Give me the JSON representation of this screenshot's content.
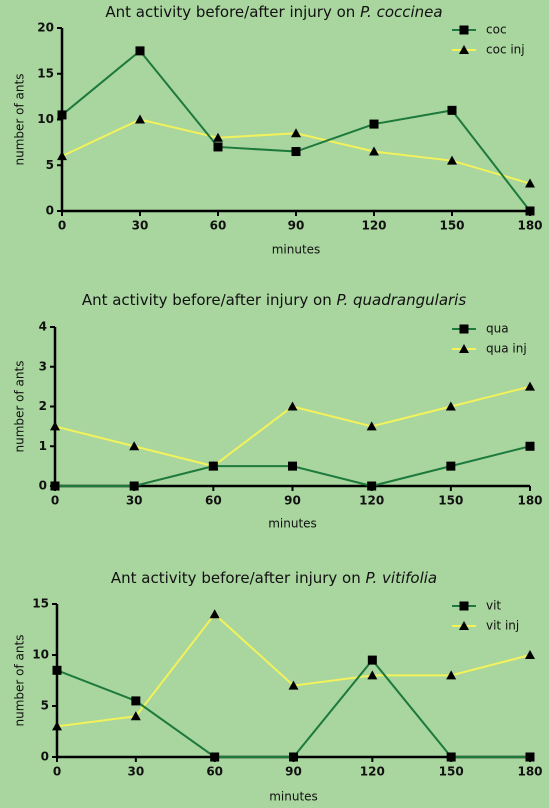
{
  "chart_data": [
    {
      "type": "line",
      "title": "Ant activity before/after injury on",
      "title_italic": "P. coccinea",
      "xlabel": "minutes",
      "ylabel": "number of ants",
      "x": [
        0,
        30,
        60,
        90,
        120,
        150,
        180
      ],
      "xlim": [
        0,
        180
      ],
      "xticks": [
        0,
        30,
        60,
        90,
        120,
        150,
        180
      ],
      "ylim": [
        0,
        20
      ],
      "yticks": [
        0,
        5,
        10,
        15,
        20
      ],
      "legend": "upper right",
      "series": [
        {
          "name": "coc",
          "color": "#1d7a3c",
          "marker": "square",
          "values": [
            10.5,
            17.5,
            7,
            6.5,
            9.5,
            11,
            0
          ]
        },
        {
          "name": "coc inj",
          "color": "#f2f25a",
          "marker": "triangle",
          "values": [
            6,
            10,
            8,
            8.5,
            6.5,
            5.5,
            3
          ]
        }
      ]
    },
    {
      "type": "line",
      "title": "Ant activity before/after injury on",
      "title_italic": "P. quadrangularis",
      "xlabel": "minutes",
      "ylabel": "number of ants",
      "x": [
        0,
        30,
        60,
        90,
        120,
        150,
        180
      ],
      "xlim": [
        0,
        180
      ],
      "xticks": [
        0,
        30,
        60,
        90,
        120,
        150,
        180
      ],
      "ylim": [
        0,
        4
      ],
      "yticks": [
        0,
        1,
        2,
        3,
        4
      ],
      "legend": "upper right",
      "series": [
        {
          "name": "qua",
          "color": "#1d7a3c",
          "marker": "square",
          "values": [
            0,
            0,
            0.5,
            0.5,
            0,
            0.5,
            1
          ]
        },
        {
          "name": "qua inj",
          "color": "#f2f25a",
          "marker": "triangle",
          "values": [
            1.5,
            1,
            0.5,
            2,
            1.5,
            2,
            2.5
          ]
        }
      ]
    },
    {
      "type": "line",
      "title": "Ant activity before/after injury on",
      "title_italic": "P. vitifolia",
      "xlabel": "minutes",
      "ylabel": "number of ants",
      "x": [
        0,
        30,
        60,
        90,
        120,
        150,
        180
      ],
      "xlim": [
        0,
        180
      ],
      "xticks": [
        0,
        30,
        60,
        90,
        120,
        150,
        180
      ],
      "ylim": [
        0,
        15
      ],
      "yticks": [
        0,
        5,
        10,
        15
      ],
      "legend": "upper right",
      "series": [
        {
          "name": "vit",
          "color": "#1d7a3c",
          "marker": "square",
          "values": [
            8.5,
            5.5,
            0,
            0,
            9.5,
            0,
            0
          ]
        },
        {
          "name": "vit inj",
          "color": "#f2f25a",
          "marker": "triangle",
          "values": [
            3,
            4,
            14,
            7,
            8,
            8,
            10
          ]
        }
      ]
    }
  ]
}
